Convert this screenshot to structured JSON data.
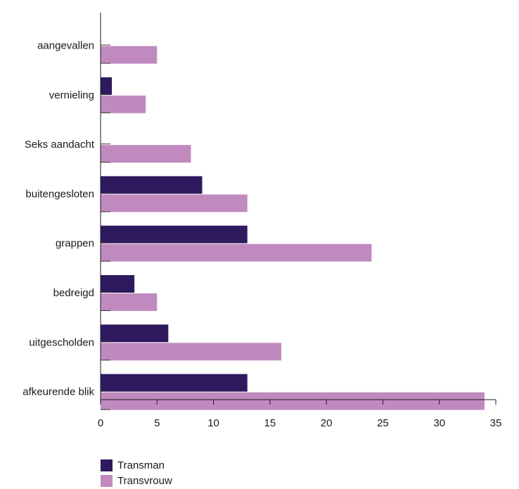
{
  "chart_data": {
    "type": "bar",
    "orientation": "horizontal",
    "categories": [
      "aangevallen",
      "vernieling",
      "Seks aandacht",
      "buitengesloten",
      "grappen",
      "bedreigd",
      "uitgescholden",
      "afkeurende blik"
    ],
    "series": [
      {
        "name": "Transman",
        "color": "#2e1a5e",
        "values": [
          0,
          1,
          0,
          9,
          13,
          3,
          6,
          13
        ]
      },
      {
        "name": "Transvrouw",
        "color": "#c08abf",
        "values": [
          5,
          4,
          8,
          13,
          24,
          5,
          16,
          34
        ]
      }
    ],
    "xlim": [
      0,
      35
    ],
    "xticks": [
      0,
      5,
      10,
      15,
      20,
      25,
      30,
      35
    ],
    "xlabel": "",
    "ylabel": "",
    "grid": false,
    "legend_position": "bottom-left"
  }
}
